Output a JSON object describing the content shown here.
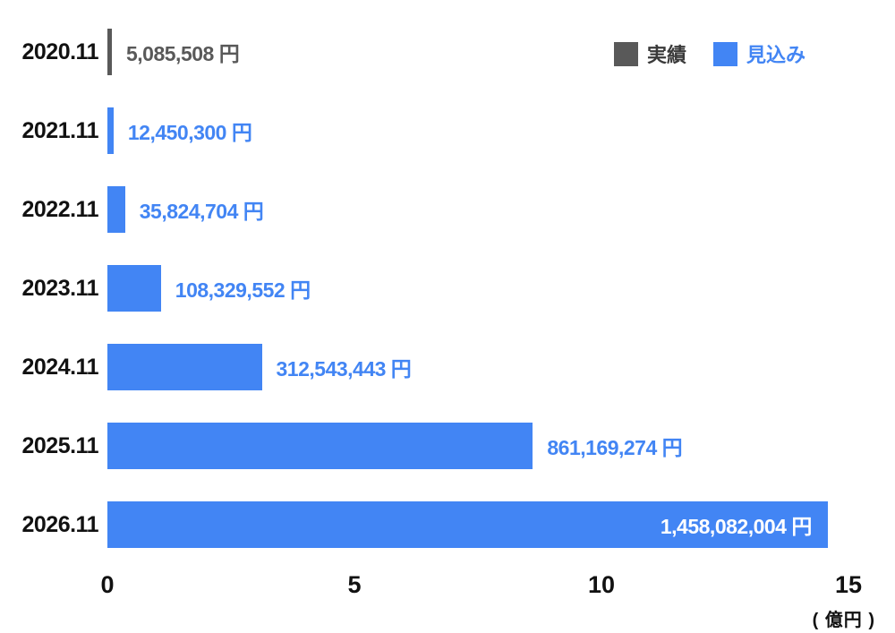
{
  "chart_data": {
    "type": "bar",
    "orientation": "horizontal",
    "title": "",
    "xlabel": "",
    "ylabel": "",
    "x_axis": {
      "ticks": [
        "0",
        "5",
        "10",
        "15"
      ],
      "tick_values": [
        0,
        5,
        10,
        15
      ],
      "max": 15,
      "unit_label": "( 億円 )",
      "unit_value_yen": 100000000,
      "grid": false
    },
    "legend": [
      {
        "label": "実績",
        "series": "actual",
        "color": "#595959"
      },
      {
        "label": "見込み",
        "series": "forecast",
        "color": "#4285F4"
      }
    ],
    "colors": {
      "actual": "#595959",
      "forecast": "#4285F4",
      "inside_label": "#FFFFFF",
      "category_text": "#111111",
      "axis_text": "#111111"
    },
    "rows": [
      {
        "category": "2020.11",
        "series": "actual",
        "value_yen": 5085508,
        "value_okuyen": 0.0509,
        "value_label": "5,085,508 円",
        "label_position": "outside"
      },
      {
        "category": "2021.11",
        "series": "forecast",
        "value_yen": 12450300,
        "value_okuyen": 0.1245,
        "value_label": "12,450,300 円",
        "label_position": "outside"
      },
      {
        "category": "2022.11",
        "series": "forecast",
        "value_yen": 35824704,
        "value_okuyen": 0.3582,
        "value_label": "35,824,704 円",
        "label_position": "outside"
      },
      {
        "category": "2023.11",
        "series": "forecast",
        "value_yen": 108329552,
        "value_okuyen": 1.0833,
        "value_label": "108,329,552 円",
        "label_position": "outside"
      },
      {
        "category": "2024.11",
        "series": "forecast",
        "value_yen": 312543443,
        "value_okuyen": 3.1254,
        "value_label": "312,543,443 円",
        "label_position": "outside"
      },
      {
        "category": "2025.11",
        "series": "forecast",
        "value_yen": 861169274,
        "value_okuyen": 8.6117,
        "value_label": "861,169,274 円",
        "label_position": "outside"
      },
      {
        "category": "2026.11",
        "series": "forecast",
        "value_yen": 1458082004,
        "value_okuyen": 14.5808,
        "value_label": "1,458,082,004 円",
        "label_position": "inside"
      }
    ]
  }
}
